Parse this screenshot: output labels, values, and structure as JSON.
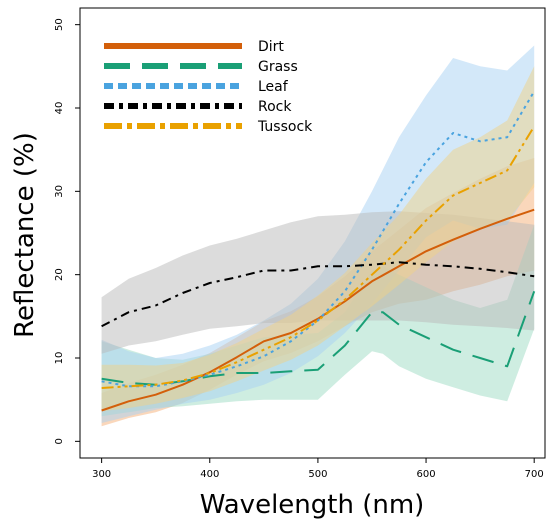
{
  "chart_data": {
    "type": "line",
    "title": "",
    "xlabel": "Wavelength (nm)",
    "ylabel": "Reflectance (%)",
    "xlim": [
      280,
      710
    ],
    "ylim": [
      -2,
      52
    ],
    "xticks": [
      300,
      400,
      500,
      600,
      700
    ],
    "yticks": [
      0,
      10,
      20,
      30,
      40,
      50
    ],
    "legend_position": "top-left",
    "grid": false,
    "series": [
      {
        "name": "Dirt",
        "color": "#d35f0a",
        "band_color": "#f6b077",
        "dash": "solid",
        "x": [
          300,
          325,
          350,
          375,
          400,
          425,
          450,
          475,
          500,
          525,
          550,
          575,
          600,
          625,
          650,
          675,
          700
        ],
        "y": [
          3.7,
          4.8,
          5.6,
          6.8,
          8.3,
          10.1,
          12.0,
          13.0,
          14.7,
          16.8,
          19.2,
          21.0,
          22.8,
          24.2,
          25.5,
          26.7,
          27.8
        ],
        "lower": [
          1.8,
          2.8,
          3.5,
          4.6,
          6.2,
          8.0,
          9.6,
          10.6,
          12.0,
          13.8,
          15.5,
          16.5,
          17.0,
          18.0,
          18.8,
          19.8,
          20.5
        ],
        "upper": [
          5.8,
          7.0,
          8.0,
          9.2,
          10.6,
          12.5,
          14.4,
          15.6,
          17.4,
          19.8,
          22.8,
          25.4,
          28.0,
          29.8,
          31.5,
          33.0,
          34.0
        ]
      },
      {
        "name": "Grass",
        "color": "#1a9f76",
        "band_color": "#9ddcc4",
        "dash": "long-dash",
        "x": [
          300,
          325,
          350,
          375,
          400,
          425,
          450,
          475,
          500,
          525,
          550,
          560,
          575,
          600,
          625,
          650,
          675,
          700
        ],
        "y": [
          7.5,
          7.0,
          6.8,
          7.2,
          7.8,
          8.2,
          8.2,
          8.4,
          8.6,
          11.5,
          15.5,
          15.5,
          14.0,
          12.5,
          11.0,
          10.0,
          9.0,
          18.0
        ],
        "lower": [
          3.0,
          3.5,
          4.0,
          4.2,
          4.5,
          4.8,
          5.0,
          5.0,
          5.0,
          8.0,
          10.8,
          10.5,
          9.0,
          7.5,
          6.5,
          5.5,
          4.8,
          13.5
        ],
        "upper": [
          12.0,
          11.0,
          10.0,
          9.8,
          10.5,
          11.5,
          12.5,
          12.8,
          13.0,
          15.5,
          20.5,
          21.0,
          20.0,
          18.5,
          17.0,
          16.0,
          17.0,
          26.0
        ]
      },
      {
        "name": "Leaf",
        "color": "#4aa3df",
        "band_color": "#a7d2f3",
        "dash": "dotted",
        "x": [
          300,
          325,
          350,
          375,
          400,
          425,
          450,
          475,
          500,
          525,
          550,
          575,
          600,
          625,
          650,
          675,
          700
        ],
        "y": [
          7.2,
          6.6,
          6.6,
          7.2,
          8.0,
          9.0,
          10.2,
          12.0,
          14.5,
          18.0,
          23.0,
          28.5,
          33.5,
          37.0,
          36.0,
          36.5,
          42.0
        ],
        "lower": [
          2.2,
          3.0,
          3.8,
          4.5,
          5.0,
          5.8,
          6.8,
          8.2,
          10.2,
          13.0,
          16.5,
          20.5,
          24.5,
          26.5,
          25.5,
          26.0,
          31.0
        ],
        "upper": [
          12.2,
          10.8,
          10.0,
          10.5,
          11.5,
          12.8,
          14.5,
          16.5,
          19.5,
          24.0,
          30.0,
          36.5,
          41.5,
          46.0,
          45.0,
          44.5,
          47.5
        ]
      },
      {
        "name": "Rock",
        "color": "#000000",
        "band_color": "#b9b9b9",
        "dash": "dash-dot",
        "x": [
          300,
          325,
          350,
          375,
          400,
          425,
          450,
          475,
          500,
          525,
          550,
          575,
          600,
          625,
          650,
          675,
          700
        ],
        "y": [
          13.8,
          15.5,
          16.3,
          17.8,
          19.0,
          19.7,
          20.5,
          20.5,
          21.0,
          21.0,
          21.2,
          21.5,
          21.2,
          21.0,
          20.7,
          20.3,
          19.8
        ],
        "lower": [
          10.5,
          11.5,
          12.0,
          12.8,
          13.5,
          13.8,
          14.2,
          14.2,
          14.5,
          14.5,
          14.5,
          14.5,
          14.3,
          14.0,
          13.8,
          13.6,
          13.3
        ],
        "upper": [
          17.3,
          19.5,
          20.8,
          22.3,
          23.5,
          24.3,
          25.3,
          26.3,
          27.0,
          27.2,
          27.5,
          27.6,
          27.4,
          27.2,
          26.8,
          26.4,
          26.0
        ]
      },
      {
        "name": "Tussock",
        "color": "#e9a100",
        "band_color": "#f0d287",
        "dash": "dash-dot-dot",
        "x": [
          300,
          325,
          350,
          375,
          400,
          425,
          450,
          475,
          500,
          525,
          550,
          575,
          600,
          625,
          650,
          675,
          700
        ],
        "y": [
          6.4,
          6.6,
          6.8,
          7.3,
          8.2,
          9.5,
          11.0,
          12.5,
          14.5,
          17.0,
          20.0,
          23.0,
          26.5,
          29.5,
          31.0,
          32.5,
          37.8
        ],
        "lower": [
          3.6,
          4.0,
          4.5,
          5.2,
          6.0,
          7.2,
          8.5,
          9.8,
          11.5,
          13.8,
          16.2,
          18.8,
          21.5,
          24.0,
          25.5,
          26.5,
          30.5
        ],
        "upper": [
          9.2,
          9.2,
          9.1,
          9.4,
          10.4,
          11.8,
          13.5,
          15.2,
          17.5,
          20.2,
          23.8,
          27.2,
          31.5,
          35.0,
          36.5,
          38.5,
          45.0
        ]
      }
    ]
  }
}
